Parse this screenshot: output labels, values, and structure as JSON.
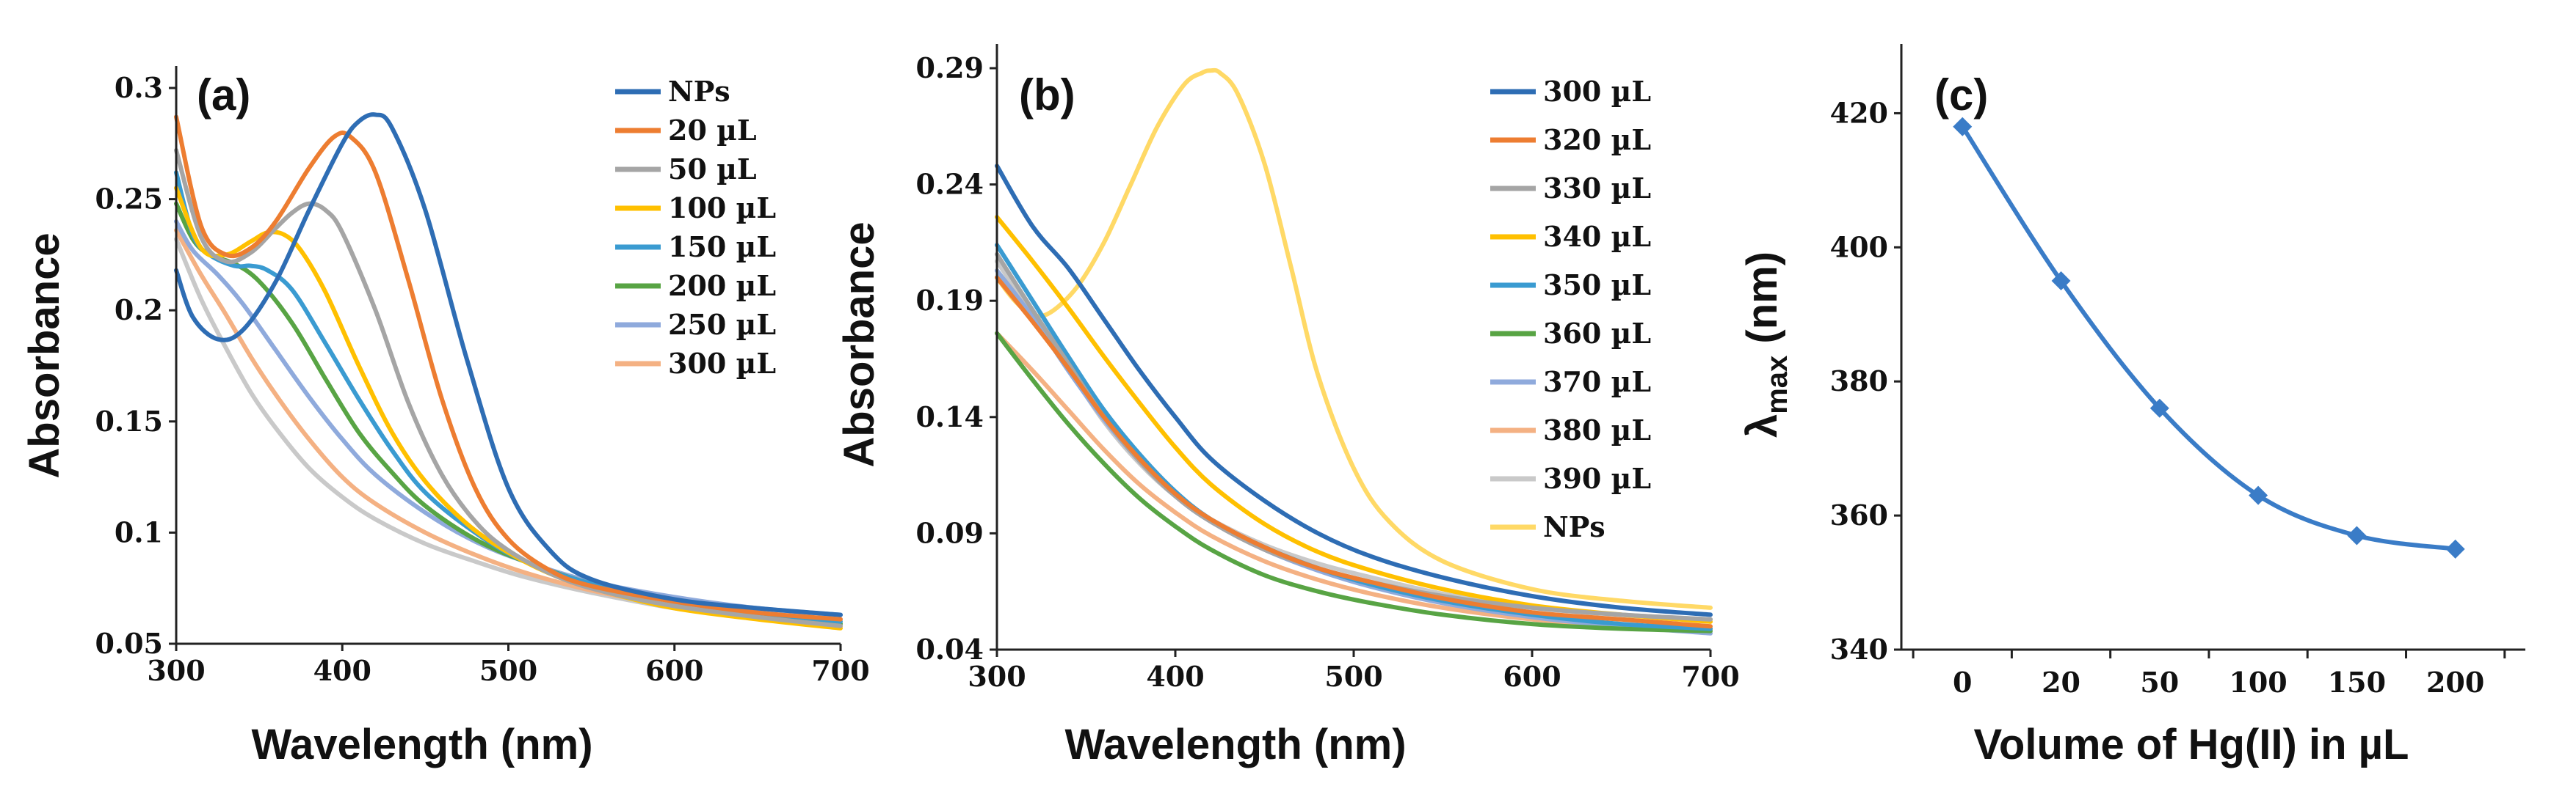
{
  "colors": {
    "blue": "#2E6DB4",
    "orange": "#ED7D31",
    "gray": "#A5A5A5",
    "gold": "#FFC000",
    "teal": "#3A9BD1",
    "green": "#58A444",
    "lightblue": "#8FAADC",
    "salmon": "#F4B183",
    "lightgray": "#C9C9C9",
    "paleyellow": "#FFD966",
    "fit": "#3A7CC7"
  },
  "chart_data": [
    {
      "type": "line",
      "panel": "(a)",
      "xlabel": "Wavelength (nm)",
      "ylabel": "Absorbance",
      "xlim": [
        300,
        700
      ],
      "ylim": [
        0.05,
        0.3
      ],
      "xticks": [
        "300",
        "400",
        "500",
        "600",
        "700"
      ],
      "yticks": [
        "0.05",
        "0.1",
        "0.15",
        "0.2",
        "0.25",
        "0.3"
      ],
      "legend_position": "top-right",
      "series": [
        {
          "name": "NPs",
          "color": "blue",
          "x": [
            300,
            310,
            325,
            340,
            360,
            380,
            400,
            410,
            420,
            430,
            450,
            475,
            500,
            525,
            550,
            600,
            650,
            700
          ],
          "y": [
            0.218,
            0.197,
            0.187,
            0.191,
            0.213,
            0.245,
            0.275,
            0.285,
            0.288,
            0.282,
            0.245,
            0.178,
            0.12,
            0.092,
            0.079,
            0.07,
            0.066,
            0.063
          ]
        },
        {
          "name": "20 µL",
          "color": "orange",
          "x": [
            300,
            315,
            330,
            345,
            360,
            380,
            395,
            405,
            420,
            440,
            460,
            480,
            500,
            525,
            550,
            600,
            650,
            700
          ],
          "y": [
            0.287,
            0.238,
            0.225,
            0.228,
            0.24,
            0.264,
            0.278,
            0.278,
            0.262,
            0.213,
            0.16,
            0.12,
            0.097,
            0.083,
            0.076,
            0.069,
            0.064,
            0.061
          ]
        },
        {
          "name": "50 µL",
          "color": "gray",
          "x": [
            300,
            315,
            330,
            345,
            360,
            370,
            380,
            390,
            400,
            420,
            440,
            460,
            480,
            500,
            530,
            560,
            600,
            650,
            700
          ],
          "y": [
            0.272,
            0.233,
            0.222,
            0.226,
            0.237,
            0.244,
            0.248,
            0.245,
            0.235,
            0.2,
            0.158,
            0.126,
            0.105,
            0.092,
            0.08,
            0.073,
            0.067,
            0.062,
            0.058
          ]
        },
        {
          "name": "100 µL",
          "color": "gold",
          "x": [
            300,
            315,
            330,
            345,
            355,
            365,
            375,
            390,
            410,
            430,
            450,
            475,
            500,
            530,
            560,
            600,
            650,
            700
          ],
          "y": [
            0.255,
            0.228,
            0.225,
            0.231,
            0.235,
            0.234,
            0.227,
            0.208,
            0.175,
            0.145,
            0.123,
            0.104,
            0.091,
            0.08,
            0.073,
            0.066,
            0.061,
            0.057
          ]
        },
        {
          "name": "150 µL",
          "color": "teal",
          "x": [
            300,
            310,
            320,
            335,
            345,
            355,
            370,
            390,
            410,
            430,
            450,
            480,
            510,
            550,
            600,
            650,
            700
          ],
          "y": [
            0.262,
            0.234,
            0.225,
            0.22,
            0.22,
            0.218,
            0.209,
            0.185,
            0.16,
            0.137,
            0.118,
            0.1,
            0.087,
            0.077,
            0.069,
            0.064,
            0.06
          ]
        },
        {
          "name": "200 µL",
          "color": "green",
          "x": [
            300,
            310,
            320,
            335,
            350,
            370,
            390,
            410,
            430,
            450,
            480,
            510,
            550,
            600,
            650,
            700
          ],
          "y": [
            0.248,
            0.232,
            0.225,
            0.221,
            0.213,
            0.194,
            0.169,
            0.145,
            0.127,
            0.112,
            0.097,
            0.087,
            0.077,
            0.069,
            0.063,
            0.059
          ]
        },
        {
          "name": "250 µL",
          "color": "lightblue",
          "x": [
            300,
            310,
            325,
            340,
            360,
            380,
            400,
            420,
            450,
            480,
            510,
            550,
            600,
            650,
            700
          ],
          "y": [
            0.24,
            0.227,
            0.216,
            0.203,
            0.182,
            0.161,
            0.142,
            0.126,
            0.109,
            0.096,
            0.087,
            0.078,
            0.071,
            0.066,
            0.063
          ]
        },
        {
          "name": "300 µL",
          "color": "salmon",
          "x": [
            300,
            315,
            330,
            345,
            360,
            380,
            400,
            420,
            450,
            480,
            510,
            550,
            600,
            650,
            700
          ],
          "y": [
            0.236,
            0.216,
            0.198,
            0.179,
            0.162,
            0.142,
            0.125,
            0.113,
            0.1,
            0.09,
            0.082,
            0.074,
            0.067,
            0.062,
            0.058
          ]
        },
        {
          "name": "",
          "color": "lightgray",
          "x": [
            300,
            315,
            330,
            345,
            360,
            380,
            400,
            420,
            450,
            480,
            510,
            550,
            600,
            650,
            700
          ],
          "y": [
            0.232,
            0.205,
            0.183,
            0.163,
            0.147,
            0.129,
            0.116,
            0.106,
            0.095,
            0.087,
            0.08,
            0.073,
            0.066,
            0.062,
            0.059
          ]
        }
      ]
    },
    {
      "type": "line",
      "panel": "(b)",
      "xlabel": "Wavelength (nm)",
      "ylabel": "Absorbance",
      "xlim": [
        300,
        700
      ],
      "ylim": [
        0.04,
        0.29
      ],
      "yticks": [
        "0.04",
        "0.09",
        "0.14",
        "0.19",
        "0.24",
        "0.29"
      ],
      "xticks": [
        "300",
        "400",
        "500",
        "600",
        "700"
      ],
      "legend_position": "top-right",
      "series": [
        {
          "name": "300 µL",
          "color": "blue",
          "x": [
            300,
            320,
            340,
            360,
            380,
            400,
            420,
            450,
            480,
            510,
            550,
            600,
            650,
            700
          ],
          "y": [
            0.248,
            0.222,
            0.204,
            0.182,
            0.16,
            0.14,
            0.122,
            0.104,
            0.09,
            0.08,
            0.071,
            0.063,
            0.058,
            0.055
          ]
        },
        {
          "name": "320 µL",
          "color": "orange",
          "x": [
            300,
            320,
            340,
            360,
            380,
            400,
            420,
            450,
            480,
            510,
            550,
            600,
            650,
            700
          ],
          "y": [
            0.2,
            0.181,
            0.161,
            0.14,
            0.122,
            0.107,
            0.096,
            0.084,
            0.075,
            0.069,
            0.062,
            0.056,
            0.053,
            0.05
          ]
        },
        {
          "name": "330 µL",
          "color": "gray",
          "x": [
            300,
            320,
            340,
            360,
            380,
            400,
            420,
            450,
            480,
            510,
            550,
            600,
            650,
            700
          ],
          "y": [
            0.21,
            0.186,
            0.163,
            0.14,
            0.121,
            0.106,
            0.095,
            0.083,
            0.075,
            0.069,
            0.063,
            0.058,
            0.055,
            0.053
          ]
        },
        {
          "name": "340 µL",
          "color": "gold",
          "x": [
            300,
            320,
            340,
            360,
            380,
            400,
            420,
            450,
            480,
            510,
            550,
            600,
            650,
            700
          ],
          "y": [
            0.226,
            0.207,
            0.187,
            0.166,
            0.146,
            0.127,
            0.111,
            0.094,
            0.082,
            0.074,
            0.066,
            0.059,
            0.055,
            0.052
          ]
        },
        {
          "name": "350 µL",
          "color": "teal",
          "x": [
            300,
            320,
            340,
            360,
            380,
            400,
            420,
            450,
            480,
            510,
            550,
            600,
            650,
            700
          ],
          "y": [
            0.214,
            0.19,
            0.166,
            0.143,
            0.124,
            0.108,
            0.096,
            0.084,
            0.075,
            0.068,
            0.061,
            0.055,
            0.051,
            0.049
          ]
        },
        {
          "name": "360 µL",
          "color": "green",
          "x": [
            300,
            320,
            340,
            360,
            380,
            400,
            420,
            450,
            480,
            510,
            550,
            600,
            650,
            700
          ],
          "y": [
            0.176,
            0.156,
            0.137,
            0.12,
            0.105,
            0.093,
            0.083,
            0.072,
            0.065,
            0.06,
            0.055,
            0.051,
            0.049,
            0.048
          ]
        },
        {
          "name": "370 µL",
          "color": "lightblue",
          "x": [
            300,
            320,
            340,
            360,
            380,
            400,
            420,
            450,
            480,
            510,
            550,
            600,
            650,
            700
          ],
          "y": [
            0.203,
            0.183,
            0.16,
            0.139,
            0.121,
            0.106,
            0.095,
            0.083,
            0.074,
            0.067,
            0.06,
            0.054,
            0.05,
            0.047
          ]
        },
        {
          "name": "380 µL",
          "color": "salmon",
          "x": [
            300,
            320,
            340,
            360,
            380,
            400,
            420,
            450,
            480,
            510,
            550,
            600,
            650,
            700
          ],
          "y": [
            0.176,
            0.16,
            0.143,
            0.126,
            0.111,
            0.099,
            0.089,
            0.078,
            0.07,
            0.064,
            0.058,
            0.053,
            0.05,
            0.049
          ]
        },
        {
          "name": "390 µL",
          "color": "lightgray",
          "x": [
            300,
            320,
            340,
            360,
            380,
            400,
            420,
            450,
            480,
            510,
            550,
            600,
            650,
            700
          ],
          "y": [
            0.207,
            0.184,
            0.161,
            0.138,
            0.12,
            0.106,
            0.096,
            0.085,
            0.077,
            0.071,
            0.064,
            0.058,
            0.055,
            0.053
          ]
        },
        {
          "name": "NPs",
          "color": "paleyellow",
          "x": [
            300,
            310,
            320,
            330,
            345,
            360,
            375,
            390,
            405,
            415,
            420,
            425,
            435,
            450,
            465,
            480,
            500,
            520,
            550,
            600,
            650,
            700
          ],
          "y": [
            0.2,
            0.19,
            0.184,
            0.185,
            0.196,
            0.215,
            0.24,
            0.265,
            0.283,
            0.288,
            0.289,
            0.288,
            0.279,
            0.249,
            0.204,
            0.158,
            0.118,
            0.095,
            0.078,
            0.066,
            0.061,
            0.058
          ]
        }
      ]
    },
    {
      "type": "scatter",
      "panel": "(c)",
      "xlabel": "Volume of Hg(II) in  µL",
      "ylabel": "λ",
      "ylabel_sub": "max",
      "ylabel_unit": " (nm)",
      "ylim": [
        340,
        430
      ],
      "yticks": [
        "340",
        "360",
        "380",
        "400",
        "420"
      ],
      "categories": [
        "0",
        "20",
        "50",
        "100",
        "150",
        "200"
      ],
      "values": [
        418,
        395,
        376,
        363,
        357,
        355
      ],
      "fit": "smooth-curve",
      "color": "fit"
    }
  ]
}
